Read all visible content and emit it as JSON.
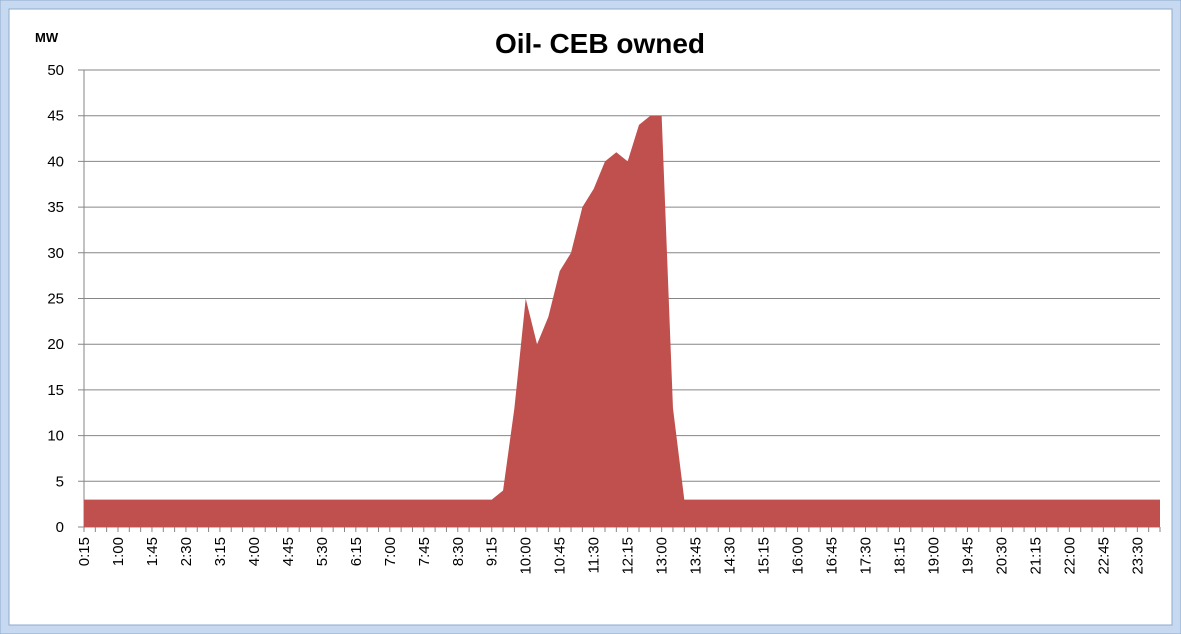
{
  "chart_data": {
    "type": "area",
    "title": "Oil- CEB owned",
    "y_label": "MW",
    "categories": [
      "0:15",
      null,
      null,
      "1:00",
      null,
      null,
      "1:45",
      null,
      null,
      "2:30",
      null,
      null,
      "3:15",
      null,
      null,
      "4:00",
      null,
      null,
      "4:45",
      null,
      null,
      "5:30",
      null,
      null,
      "6:15",
      null,
      null,
      "7:00",
      null,
      null,
      "7:45",
      null,
      null,
      "8:30",
      null,
      null,
      "9:15",
      null,
      null,
      "10:00",
      null,
      null,
      "10:45",
      null,
      null,
      "11:30",
      null,
      null,
      "12:15",
      null,
      null,
      "13:00",
      null,
      null,
      "13:45",
      null,
      null,
      "14:30",
      null,
      null,
      "15:15",
      null,
      null,
      "16:00",
      null,
      null,
      "16:45",
      null,
      null,
      "17:30",
      null,
      null,
      "18:15",
      null,
      null,
      "19:00",
      null,
      null,
      "19:45",
      null,
      null,
      "20:30",
      null,
      null,
      "21:15",
      null,
      null,
      "22:00",
      null,
      null,
      "22:45",
      null,
      null,
      "23:30",
      null,
      null
    ],
    "values": [
      3,
      3,
      3,
      3,
      3,
      3,
      3,
      3,
      3,
      3,
      3,
      3,
      3,
      3,
      3,
      3,
      3,
      3,
      3,
      3,
      3,
      3,
      3,
      3,
      3,
      3,
      3,
      3,
      3,
      3,
      3,
      3,
      3,
      3,
      3,
      3,
      3,
      4,
      13,
      25,
      20,
      23,
      28,
      30,
      35,
      37,
      40,
      41,
      40,
      44,
      45,
      45,
      13,
      3,
      3,
      3,
      3,
      3,
      3,
      3,
      3,
      3,
      3,
      3,
      3,
      3,
      3,
      3,
      3,
      3,
      3,
      3,
      3,
      3,
      3,
      3,
      3,
      3,
      3,
      3,
      3,
      3,
      3,
      3,
      3,
      3,
      3,
      3,
      3,
      3,
      3,
      3,
      3,
      3,
      3,
      3
    ],
    "color": "#c0504d",
    "ylim": [
      0,
      50
    ],
    "yticks": [
      0,
      5,
      10,
      15,
      20,
      25,
      30,
      35,
      40,
      45,
      50
    ],
    "grid": true
  }
}
